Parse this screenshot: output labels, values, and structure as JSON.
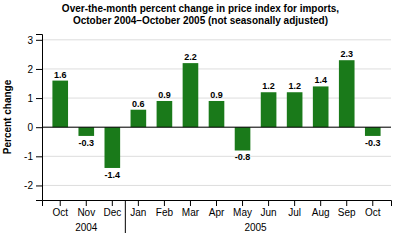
{
  "chart_data": {
    "type": "bar",
    "title": "Over-the-month percent change in price index for imports,",
    "subtitle": "October 2004–October 2005 (not seasonally adjusted)",
    "y_label": "Percent change",
    "categories": [
      "Oct",
      "Nov",
      "Dec",
      "Jan",
      "Feb",
      "Mar",
      "Apr",
      "May",
      "Jun",
      "Jul",
      "Aug",
      "Sep",
      "Oct"
    ],
    "values": [
      1.6,
      -0.3,
      -1.4,
      0.6,
      0.9,
      2.2,
      0.9,
      -0.8,
      1.2,
      1.2,
      1.4,
      2.3,
      -0.3
    ],
    "color": "#1a7a1a",
    "ylim": [
      -2.5,
      3.2
    ],
    "yticks": [
      -2,
      -1,
      0,
      1,
      2,
      3
    ],
    "grid": true,
    "data_labels": true,
    "annotations": [
      {
        "text": "2004",
        "from": 0,
        "to": 2
      },
      {
        "text": "2005",
        "from": 3,
        "to": 12
      }
    ]
  }
}
